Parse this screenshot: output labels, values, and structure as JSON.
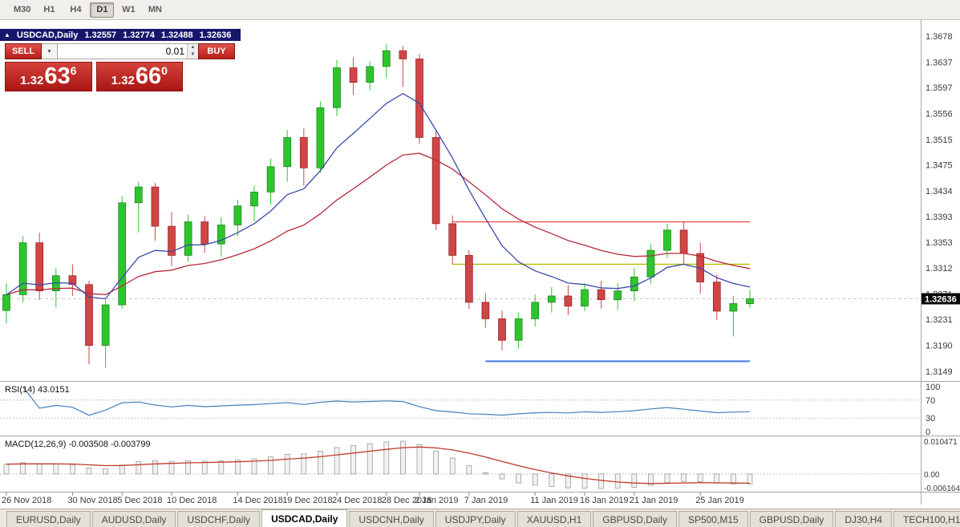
{
  "toolbar": {
    "timeframes": [
      "M30",
      "H1",
      "H4",
      "D1",
      "W1",
      "MN"
    ],
    "active": "D1"
  },
  "header": {
    "symbol": "USDCAD,Daily",
    "open": "1.32557",
    "high": "1.32774",
    "low": "1.32488",
    "close": "1.32636"
  },
  "trade": {
    "sell_label": "SELL",
    "buy_label": "BUY",
    "volume": "0.01",
    "sell_price": {
      "prefix": "1.32",
      "big": "63",
      "sup": "6"
    },
    "buy_price": {
      "prefix": "1.32",
      "big": "66",
      "sup": "0"
    },
    "panel_color": "#c0221e"
  },
  "tabs": {
    "items": [
      "EURUSD,Daily",
      "AUDUSD,Daily",
      "USDCHF,Daily",
      "USDCAD,Daily",
      "USDCNH,Daily",
      "USDJPY,Daily",
      "XAUUSD,H1",
      "GBPUSD,Daily",
      "SP500,M15",
      "GBPUSD,Daily",
      "DJ30,H4",
      "TECH100,H1"
    ],
    "active_index": 3
  },
  "chart_data": {
    "type": "candlestick",
    "symbol": "USDCAD",
    "timeframe": "Daily",
    "current_price": 1.32636,
    "current_price_label": "1.32636",
    "price_axis_labels": [
      "1.3678",
      "1.3637",
      "1.3597",
      "1.3556",
      "1.3515",
      "1.3475",
      "1.3434",
      "1.3393",
      "1.3353",
      "1.3312",
      "1.3271",
      "1.3231",
      "1.3190",
      "1.3149"
    ],
    "colors": {
      "up": "#2dc52d",
      "up_border": "#1d7a1d",
      "down": "#d04545",
      "down_border": "#8c2323",
      "ma_fast": "#3949ab",
      "ma_slow": "#b52b3d",
      "rsi": "#4a7ebb",
      "macd_signal": "#c0392b",
      "hline_red": "#f15151",
      "hline_yellow": "#b9bb00",
      "hline_blue": "#3e79e0"
    },
    "candles": [
      [
        1.3245,
        1.3288,
        1.3225,
        1.327
      ],
      [
        1.327,
        1.3362,
        1.3258,
        1.3352
      ],
      [
        1.3352,
        1.3368,
        1.3262,
        1.3276
      ],
      [
        1.3276,
        1.3312,
        1.325,
        1.33
      ],
      [
        1.33,
        1.3318,
        1.3268,
        1.3286
      ],
      [
        1.3286,
        1.3292,
        1.316,
        1.319
      ],
      [
        1.319,
        1.3262,
        1.3155,
        1.3254
      ],
      [
        1.3254,
        1.3425,
        1.3248,
        1.3415
      ],
      [
        1.3415,
        1.3448,
        1.3368,
        1.344
      ],
      [
        1.344,
        1.3446,
        1.3355,
        1.3378
      ],
      [
        1.3378,
        1.34,
        1.3315,
        1.3332
      ],
      [
        1.3332,
        1.3396,
        1.3322,
        1.3385
      ],
      [
        1.3385,
        1.3394,
        1.3336,
        1.335
      ],
      [
        1.335,
        1.3392,
        1.333,
        1.338
      ],
      [
        1.338,
        1.342,
        1.3362,
        1.341
      ],
      [
        1.341,
        1.3442,
        1.3386,
        1.3432
      ],
      [
        1.3432,
        1.3485,
        1.3412,
        1.3472
      ],
      [
        1.3472,
        1.353,
        1.3448,
        1.3518
      ],
      [
        1.3518,
        1.3532,
        1.3442,
        1.347
      ],
      [
        1.347,
        1.3575,
        1.3462,
        1.3565
      ],
      [
        1.3565,
        1.364,
        1.3552,
        1.3628
      ],
      [
        1.3628,
        1.3645,
        1.3585,
        1.3605
      ],
      [
        1.3605,
        1.3638,
        1.3592,
        1.363
      ],
      [
        1.363,
        1.3665,
        1.3612,
        1.3655
      ],
      [
        1.3655,
        1.3662,
        1.3598,
        1.3642
      ],
      [
        1.3642,
        1.365,
        1.3508,
        1.3518
      ],
      [
        1.3518,
        1.3528,
        1.3372,
        1.3382
      ],
      [
        1.3382,
        1.3395,
        1.3318,
        1.3332
      ],
      [
        1.3332,
        1.334,
        1.3248,
        1.3258
      ],
      [
        1.3258,
        1.3272,
        1.3218,
        1.3232
      ],
      [
        1.3232,
        1.3245,
        1.3182,
        1.3198
      ],
      [
        1.3198,
        1.3242,
        1.3185,
        1.3232
      ],
      [
        1.3232,
        1.327,
        1.322,
        1.3258
      ],
      [
        1.3258,
        1.3282,
        1.3242,
        1.3268
      ],
      [
        1.3268,
        1.3285,
        1.3238,
        1.3252
      ],
      [
        1.3252,
        1.3288,
        1.3244,
        1.3278
      ],
      [
        1.3278,
        1.3292,
        1.3248,
        1.3262
      ],
      [
        1.3262,
        1.3288,
        1.3246,
        1.3276
      ],
      [
        1.3276,
        1.3312,
        1.326,
        1.3298
      ],
      [
        1.3298,
        1.335,
        1.3288,
        1.334
      ],
      [
        1.334,
        1.3382,
        1.3328,
        1.3372
      ],
      [
        1.3372,
        1.3386,
        1.3318,
        1.3335
      ],
      [
        1.3335,
        1.3352,
        1.3272,
        1.329
      ],
      [
        1.329,
        1.3302,
        1.323,
        1.3244
      ],
      [
        1.3244,
        1.3268,
        1.3204,
        1.3256
      ],
      [
        1.32557,
        1.32774,
        1.32488,
        1.32636
      ]
    ],
    "date_labels": [
      [
        "26 Nov 2018",
        0
      ],
      [
        "30 Nov 2018",
        4
      ],
      [
        "5 Dec 2018",
        7
      ],
      [
        "10 Dec 2018",
        10
      ],
      [
        "14 Dec 2018",
        14
      ],
      [
        "19 Dec 2018",
        17
      ],
      [
        "24 Dec 2018",
        20
      ],
      [
        "28 Dec 2018",
        23
      ],
      [
        "2 Jan 2019",
        25
      ],
      [
        "7 Jan 2019",
        28
      ],
      [
        "11 Jan 2019",
        32
      ],
      [
        "16 Jan 2019",
        35
      ],
      [
        "21 Jan 2019",
        38
      ],
      [
        "25 Jan 2019",
        42
      ]
    ],
    "hlines": [
      {
        "name": "resistance-line",
        "price": 1.3385,
        "color_key": "hline_red",
        "from_index": 27,
        "width": 1.4
      },
      {
        "name": "mid-line",
        "price": 1.3318,
        "color_key": "hline_yellow",
        "from_index": 27,
        "width": 1.4
      },
      {
        "name": "support-line",
        "price": 1.3165,
        "color_key": "hline_blue",
        "from_index": 29,
        "width": 2
      }
    ],
    "overlays": [
      {
        "name": "ma-fast",
        "period": 8
      },
      {
        "name": "ma-slow",
        "period": 20
      }
    ],
    "rsi": {
      "label": "RSI(14) 43.0151",
      "period": 14,
      "levels": [
        100,
        70,
        30,
        0
      ]
    },
    "macd": {
      "label": "MACD(12,26,9) -0.003508 -0.003799",
      "fast": 12,
      "slow": 26,
      "signal": 9,
      "axis_labels": [
        "0.010471",
        "0.00",
        "-0.006164"
      ]
    }
  }
}
